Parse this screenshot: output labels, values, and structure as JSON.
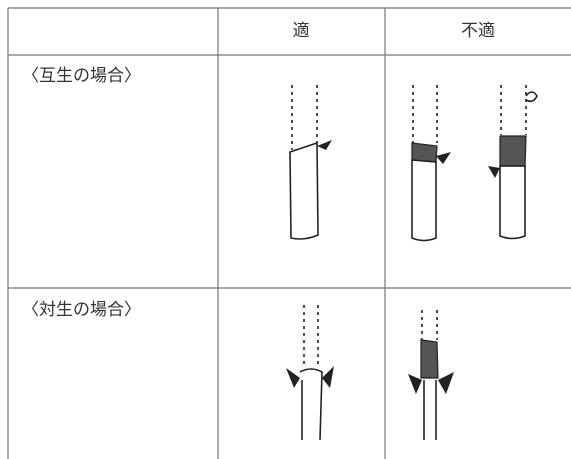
{
  "table": {
    "header": [
      "適",
      "不適"
    ],
    "rows": [
      [
        "〈互生の場合〉"
      ],
      [
        "〈対生の場合〉"
      ]
    ]
  }
}
